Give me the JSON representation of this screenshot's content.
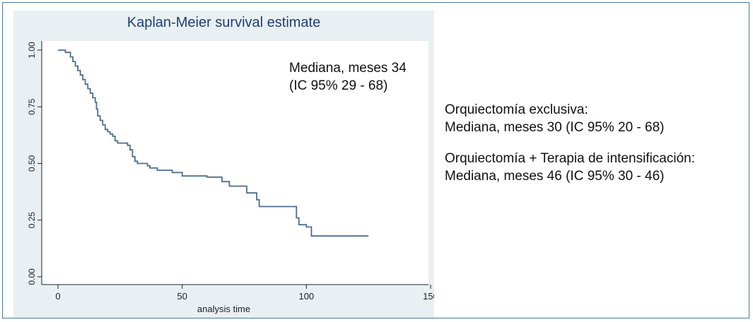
{
  "chart_data": {
    "type": "line",
    "step": true,
    "title": "Kaplan-Meier survival estimate",
    "xlabel": "analysis time",
    "ylabel": "",
    "xlim": [
      0,
      150
    ],
    "ylim": [
      0,
      1
    ],
    "x_ticks": [
      "0",
      "50",
      "100",
      "150"
    ],
    "x_tick_values": [
      0,
      50,
      100,
      150
    ],
    "y_ticks": [
      "0.00",
      "0.25",
      "0.50",
      "0.75",
      "1.00"
    ],
    "y_tick_values": [
      0,
      0.25,
      0.5,
      0.75,
      1.0
    ],
    "grid": false,
    "colors": {
      "line": "#4f6e8f",
      "panel": "#e9f0f3",
      "plot_bg": "#ffffff",
      "title": "#1f3f73"
    },
    "series": [
      {
        "x": [
          0,
          3,
          5,
          6,
          7,
          8,
          9,
          10,
          11,
          12,
          13,
          14,
          15,
          15.5,
          16,
          17,
          18,
          19,
          20,
          21,
          22,
          23,
          24,
          25,
          28,
          29,
          30,
          31,
          32,
          36,
          37,
          40,
          46,
          50,
          60,
          66,
          69,
          76,
          80,
          81,
          93,
          96,
          97,
          100,
          102,
          125
        ],
        "y": [
          1.0,
          0.99,
          0.97,
          0.95,
          0.93,
          0.91,
          0.89,
          0.87,
          0.85,
          0.83,
          0.81,
          0.79,
          0.77,
          0.74,
          0.71,
          0.69,
          0.67,
          0.65,
          0.64,
          0.63,
          0.62,
          0.6,
          0.59,
          0.59,
          0.58,
          0.56,
          0.53,
          0.51,
          0.5,
          0.49,
          0.48,
          0.47,
          0.46,
          0.445,
          0.44,
          0.42,
          0.4,
          0.37,
          0.34,
          0.31,
          0.31,
          0.26,
          0.23,
          0.22,
          0.18,
          0.18
        ]
      }
    ],
    "annotation": [
      "Mediana, meses 34",
      "(IC 95% 29 - 68)"
    ]
  },
  "notes": {
    "group1": {
      "title": "Orquiectomía exclusiva:",
      "median": "Mediana, meses  30 (IC 95% 20 - 68)"
    },
    "group2": {
      "title": "Orquiectomía + Terapia de intensificación:",
      "median": "Mediana, meses  46  (IC 95% 30 - 46)"
    }
  }
}
